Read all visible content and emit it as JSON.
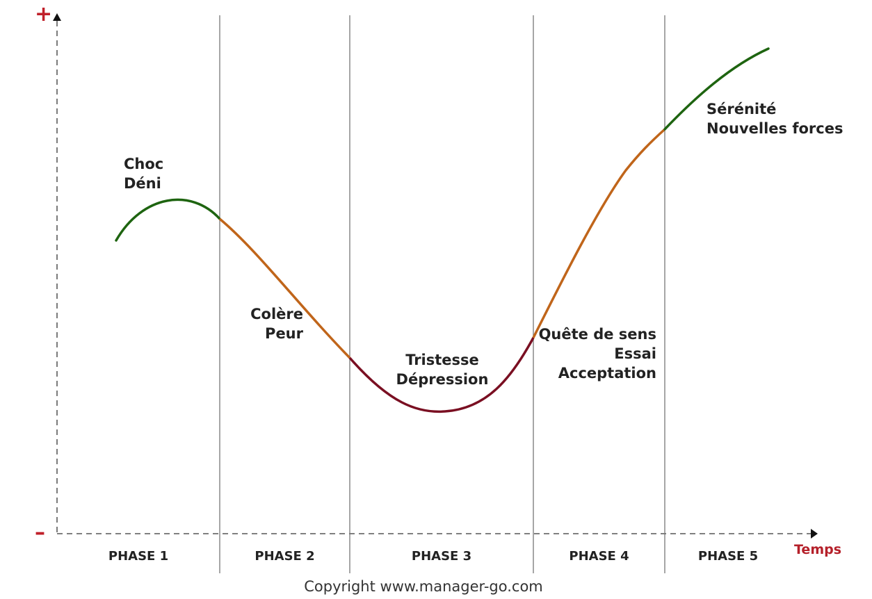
{
  "axis": {
    "plus_sign": "+",
    "minus_sign": "–",
    "x_label": "Temps",
    "label_color": "#c0202a"
  },
  "phases": [
    "PHASE 1",
    "PHASE 2",
    "PHASE 3",
    "PHASE 4",
    "PHASE 5"
  ],
  "stages": [
    {
      "lines": [
        "Choc",
        "Déni"
      ],
      "color": "#1e6410"
    },
    {
      "lines": [
        "Colère",
        "Peur"
      ],
      "color": "#c0651a"
    },
    {
      "lines": [
        "Tristesse",
        "Dépression"
      ],
      "color": "#7a0f22"
    },
    {
      "lines": [
        "Quête de sens",
        "Essai",
        "Acceptation"
      ],
      "color": "#c0651a"
    },
    {
      "lines": [
        "Sérénité",
        "Nouvelles forces"
      ],
      "color": "#1e6410"
    }
  ],
  "copyright": "Copyright www.manager-go.com"
}
